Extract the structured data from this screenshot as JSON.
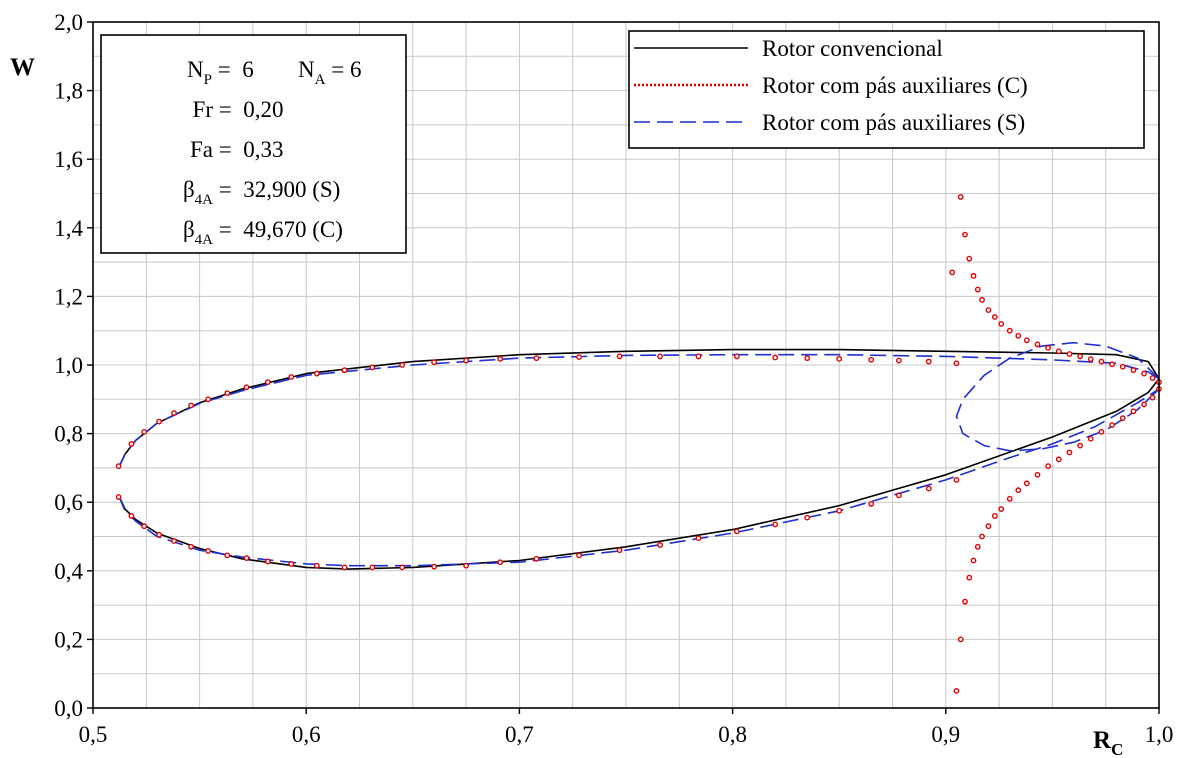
{
  "chart_data": {
    "type": "line",
    "xlabel": "R",
    "xlabel_sub": "C",
    "ylabel": "W",
    "xlim": [
      0.5,
      1.0
    ],
    "ylim": [
      0.0,
      2.0
    ],
    "x_ticks": [
      "0,5",
      "0,6",
      "0,7",
      "0,8",
      "0,9",
      "1,0"
    ],
    "y_ticks": [
      "0,0",
      "0,2",
      "0,4",
      "0,6",
      "0,8",
      "1,0",
      "1,2",
      "1,4",
      "1,6",
      "1,8",
      "2,0"
    ],
    "grid": true,
    "legend_position": "top-right",
    "legend": [
      {
        "label": "Rotor convencional",
        "color": "#000000",
        "style": "solid"
      },
      {
        "label": "Rotor com pás auxiliares (C)",
        "color": "#e00000",
        "style": "dotted"
      },
      {
        "label": "Rotor com pás auxiliares (S)",
        "color": "#1f2fd0",
        "style": "dashed"
      }
    ],
    "parameters": [
      {
        "label": "N",
        "sub": "P",
        "eq": " = ",
        "value": "6",
        "label2": "N",
        "sub2": "A",
        "eq2": " = ",
        "value2": "6"
      },
      {
        "label": "Fr",
        "sub": "",
        "eq": " = ",
        "value": "0,20"
      },
      {
        "label": "Fa",
        "sub": "",
        "eq": " = ",
        "value": "0,33"
      },
      {
        "label": "β",
        "sub": "4A",
        "eq": " = ",
        "value": "32,900 (S)"
      },
      {
        "label": "β",
        "sub": "4A",
        "eq": " = ",
        "value": "49,670 (C)"
      }
    ],
    "series": [
      {
        "name": "Rotor convencional",
        "color": "#000000",
        "style": "solid",
        "upper": {
          "x": [
            0.512,
            0.515,
            0.52,
            0.53,
            0.55,
            0.57,
            0.6,
            0.65,
            0.7,
            0.75,
            0.8,
            0.85,
            0.9,
            0.95,
            0.98,
            0.995,
            1.0
          ],
          "y": [
            0.7,
            0.74,
            0.78,
            0.83,
            0.89,
            0.93,
            0.975,
            1.01,
            1.03,
            1.04,
            1.045,
            1.045,
            1.04,
            1.035,
            1.03,
            1.01,
            0.96
          ]
        },
        "lower": {
          "x": [
            0.512,
            0.515,
            0.52,
            0.53,
            0.55,
            0.57,
            0.6,
            0.62,
            0.65,
            0.7,
            0.75,
            0.8,
            0.85,
            0.9,
            0.95,
            0.98,
            0.995,
            1.0
          ],
          "y": [
            0.62,
            0.58,
            0.55,
            0.51,
            0.465,
            0.435,
            0.41,
            0.405,
            0.41,
            0.43,
            0.47,
            0.52,
            0.59,
            0.68,
            0.79,
            0.865,
            0.92,
            0.96
          ]
        }
      },
      {
        "name": "Rotor com pás auxiliares (S)",
        "color": "#1f2fd0",
        "style": "dashed",
        "upper": {
          "x": [
            0.512,
            0.515,
            0.52,
            0.53,
            0.55,
            0.57,
            0.6,
            0.65,
            0.7,
            0.75,
            0.8,
            0.85,
            0.9,
            0.95,
            0.98,
            0.995,
            1.0
          ],
          "y": [
            0.7,
            0.74,
            0.78,
            0.83,
            0.888,
            0.925,
            0.97,
            1.0,
            1.02,
            1.028,
            1.03,
            1.03,
            1.025,
            1.015,
            1.005,
            0.98,
            0.96
          ]
        },
        "lower": {
          "x": [
            0.512,
            0.515,
            0.52,
            0.53,
            0.55,
            0.57,
            0.6,
            0.62,
            0.65,
            0.7,
            0.75,
            0.8,
            0.85,
            0.9,
            0.93,
            0.95,
            0.97,
            0.99,
            1.0
          ],
          "y": [
            0.62,
            0.575,
            0.545,
            0.5,
            0.46,
            0.44,
            0.42,
            0.415,
            0.415,
            0.425,
            0.46,
            0.51,
            0.575,
            0.665,
            0.73,
            0.77,
            0.82,
            0.89,
            0.93
          ]
        },
        "loop": {
          "x": [
            1.0,
            0.99,
            0.975,
            0.96,
            0.945,
            0.93,
            0.918,
            0.908,
            0.905,
            0.908,
            0.918,
            0.93,
            0.945,
            0.96,
            0.975,
            0.99,
            1.0
          ],
          "y": [
            0.96,
            1.02,
            1.055,
            1.065,
            1.055,
            1.02,
            0.97,
            0.9,
            0.85,
            0.8,
            0.765,
            0.75,
            0.755,
            0.775,
            0.81,
            0.87,
            0.93
          ]
        }
      },
      {
        "name": "Rotor com pás auxiliares (C)",
        "color": "#e00000",
        "style": "dotted",
        "points_upper": {
          "x": [
            0.512,
            0.518,
            0.524,
            0.531,
            0.538,
            0.546,
            0.554,
            0.563,
            0.572,
            0.582,
            0.593,
            0.605,
            0.618,
            0.631,
            0.645,
            0.66,
            0.675,
            0.691,
            0.708,
            0.728,
            0.747,
            0.766,
            0.784,
            0.802,
            0.82,
            0.835,
            0.85,
            0.865,
            0.878,
            0.892,
            0.905
          ],
          "y": [
            0.705,
            0.77,
            0.805,
            0.835,
            0.86,
            0.882,
            0.9,
            0.918,
            0.935,
            0.95,
            0.965,
            0.975,
            0.985,
            0.993,
            1.0,
            1.008,
            1.013,
            1.018,
            1.02,
            1.023,
            1.025,
            1.025,
            1.025,
            1.025,
            1.022,
            1.02,
            1.018,
            1.015,
            1.013,
            1.01,
            1.005
          ]
        },
        "points_lower": {
          "x": [
            0.512,
            0.518,
            0.524,
            0.531,
            0.538,
            0.546,
            0.554,
            0.563,
            0.572,
            0.582,
            0.593,
            0.605,
            0.618,
            0.631,
            0.645,
            0.66,
            0.675,
            0.691,
            0.708,
            0.728,
            0.747,
            0.766,
            0.784,
            0.802,
            0.82,
            0.835,
            0.85,
            0.865,
            0.878,
            0.892,
            0.905
          ],
          "y": [
            0.615,
            0.56,
            0.53,
            0.505,
            0.487,
            0.47,
            0.458,
            0.445,
            0.437,
            0.427,
            0.42,
            0.415,
            0.41,
            0.41,
            0.41,
            0.412,
            0.415,
            0.425,
            0.435,
            0.445,
            0.46,
            0.475,
            0.495,
            0.515,
            0.535,
            0.555,
            0.575,
            0.595,
            0.62,
            0.64,
            0.665
          ]
        },
        "points_branch_top": {
          "x": [
            0.903,
            0.907,
            0.909,
            0.911,
            0.913,
            0.915,
            0.917,
            0.92,
            0.923,
            0.926,
            0.93,
            0.934,
            0.938,
            0.943,
            0.948,
            0.953,
            0.958,
            0.963,
            0.968,
            0.973,
            0.978,
            0.983,
            0.988,
            0.993,
            0.997,
            1.0
          ],
          "y": [
            1.27,
            1.49,
            1.38,
            1.31,
            1.26,
            1.22,
            1.19,
            1.16,
            1.14,
            1.12,
            1.1,
            1.085,
            1.072,
            1.06,
            1.05,
            1.04,
            1.032,
            1.025,
            1.017,
            1.01,
            1.002,
            0.995,
            0.985,
            0.975,
            0.962,
            0.95
          ]
        },
        "points_branch_bottom": {
          "x": [
            0.905,
            0.907,
            0.909,
            0.911,
            0.913,
            0.915,
            0.917,
            0.92,
            0.923,
            0.926,
            0.93,
            0.934,
            0.938,
            0.943,
            0.948,
            0.953,
            0.958,
            0.963,
            0.968,
            0.973,
            0.978,
            0.983,
            0.988,
            0.993,
            0.997,
            1.0
          ],
          "y": [
            0.05,
            0.2,
            0.31,
            0.38,
            0.43,
            0.47,
            0.5,
            0.53,
            0.56,
            0.58,
            0.61,
            0.635,
            0.655,
            0.68,
            0.705,
            0.725,
            0.745,
            0.765,
            0.785,
            0.805,
            0.825,
            0.845,
            0.865,
            0.885,
            0.905,
            0.93
          ]
        }
      }
    ]
  }
}
